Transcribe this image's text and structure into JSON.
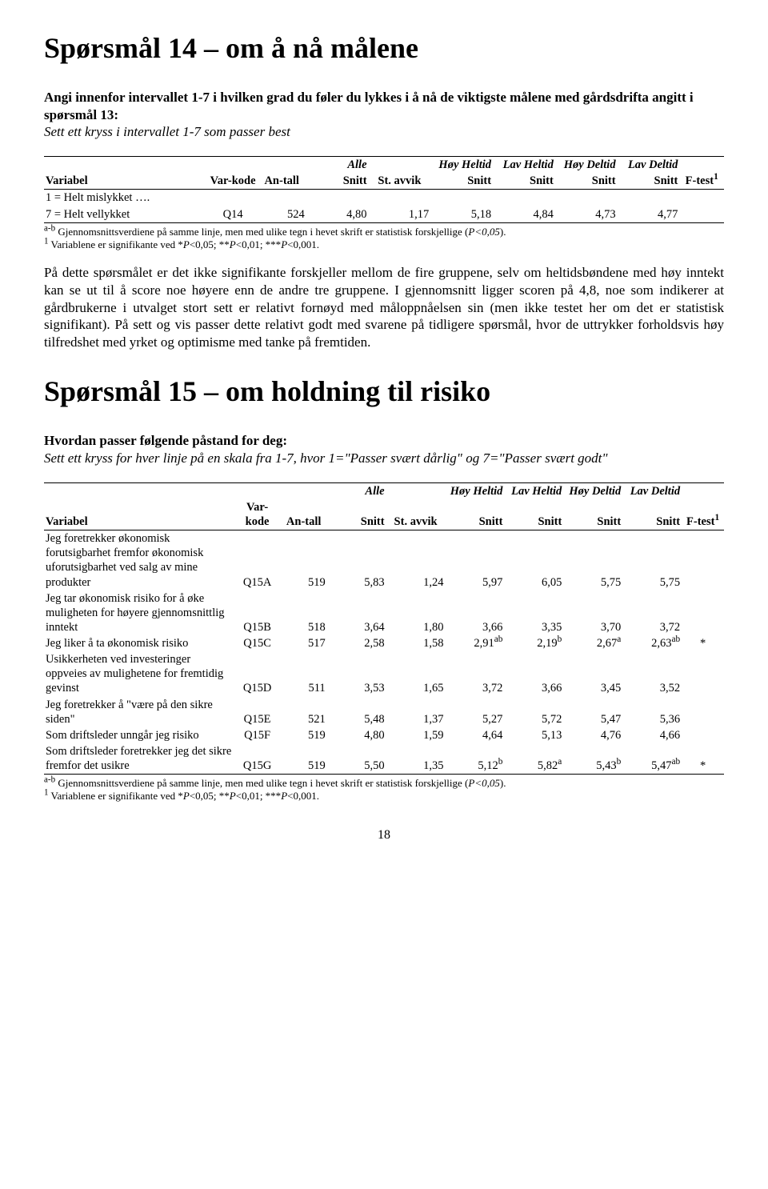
{
  "section14": {
    "title": "Spørsmål 14 – om å nå målene",
    "intro_bold": "Angi innenfor intervallet 1-7 i hvilken grad du føler du lykkes i å nå de viktigste målene med gårdsdrifta angitt i spørsmål 13:",
    "intro_italic": "Sett ett kryss i intervallet 1-7 som passer best",
    "row_stub1": "1 = Helt mislykket ….",
    "row_label": "7 = Helt vellykket",
    "row_code": "Q14",
    "row_n": "524",
    "row_snitt": "4,80",
    "row_sd": "1,17",
    "row_hh": "5,18",
    "row_lh": "4,84",
    "row_hd": "4,73",
    "row_ld": "4,77",
    "row_f": ""
  },
  "headers": {
    "alle": "Alle",
    "hoy_heltid": "Høy Heltid",
    "lav_heltid": "Lav Heltid",
    "hoy_deltid": "Høy Deltid",
    "lav_deltid": "Lav Deltid",
    "variabel": "Variabel",
    "varkode": "Var-kode",
    "antall": "An-tall",
    "snitt": "Snitt",
    "stavvik": "St. avvik",
    "ftest": "F-test",
    "ftest_sup": "1"
  },
  "footnotes": {
    "a": "a-b",
    "line1": " Gjennomsnittsverdiene på samme linje, men med ulike tegn i hevet skrift er statistisk forskjellige (",
    "pval": "P<0,05",
    "line1_end": ").",
    "sup2": "1",
    "line2": " Variablene er signifikante ved *",
    "p1": "P",
    "v1": "<0,05; **",
    "p2": "P",
    "v2": "<0,01; ***",
    "p3": "P",
    "v3": "<0,001."
  },
  "body14": "På dette spørsmålet er det ikke signifikante forskjeller mellom de fire gruppene, selv om heltidsbøndene med høy inntekt kan se ut til å score noe høyere enn de andre tre gruppene. I gjennomsnitt ligger scoren på 4,8, noe som indikerer at gårdbrukerne i utvalget stort sett er relativt fornøyd med måloppnåelsen sin (men ikke testet her om det er statistisk signifikant). På sett og vis passer dette relativt godt med svarene på tidligere spørsmål, hvor de uttrykker forholdsvis høy tilfredshet med yrket og optimisme med tanke på fremtiden.",
  "section15": {
    "title": "Spørsmål 15 – om holdning til risiko",
    "intro_bold": "Hvordan passer følgende påstand for deg:",
    "intro_italic": "Sett ett kryss for hver linje på en skala fra 1-7, hvor 1=\"Passer svært dårlig\" og 7=\"Passer svært godt\"",
    "rows": [
      {
        "label": "Jeg foretrekker økonomisk forutsigbarhet fremfor økonomisk uforutsigbarhet ved salg av mine produkter",
        "code": "Q15A",
        "n": "519",
        "snitt": "5,83",
        "sd": "1,24",
        "hh": "5,97",
        "hh_s": "",
        "lh": "6,05",
        "lh_s": "",
        "hd": "5,75",
        "hd_s": "",
        "ld": "5,75",
        "ld_s": "",
        "f": ""
      },
      {
        "label": "Jeg tar økonomisk risiko for å øke muligheten for høyere gjennomsnittlig inntekt",
        "code": "Q15B",
        "n": "518",
        "snitt": "3,64",
        "sd": "1,80",
        "hh": "3,66",
        "hh_s": "",
        "lh": "3,35",
        "lh_s": "",
        "hd": "3,70",
        "hd_s": "",
        "ld": "3,72",
        "ld_s": "",
        "f": ""
      },
      {
        "label": "Jeg liker å ta økonomisk risiko",
        "code": "Q15C",
        "n": "517",
        "snitt": "2,58",
        "sd": "1,58",
        "hh": "2,91",
        "hh_s": "ab",
        "lh": "2,19",
        "lh_s": "b",
        "hd": "2,67",
        "hd_s": "a",
        "ld": "2,63",
        "ld_s": "ab",
        "f": "*"
      },
      {
        "label": "Usikkerheten ved investeringer oppveies av mulighetene for fremtidig gevinst",
        "code": "Q15D",
        "n": "511",
        "snitt": "3,53",
        "sd": "1,65",
        "hh": "3,72",
        "hh_s": "",
        "lh": "3,66",
        "lh_s": "",
        "hd": "3,45",
        "hd_s": "",
        "ld": "3,52",
        "ld_s": "",
        "f": ""
      },
      {
        "label": "Jeg foretrekker å \"være på den sikre siden\"",
        "code": "Q15E",
        "n": "521",
        "snitt": "5,48",
        "sd": "1,37",
        "hh": "5,27",
        "hh_s": "",
        "lh": "5,72",
        "lh_s": "",
        "hd": "5,47",
        "hd_s": "",
        "ld": "5,36",
        "ld_s": "",
        "f": ""
      },
      {
        "label": "Som driftsleder unngår jeg risiko",
        "code": "Q15F",
        "n": "519",
        "snitt": "4,80",
        "sd": "1,59",
        "hh": "4,64",
        "hh_s": "",
        "lh": "5,13",
        "lh_s": "",
        "hd": "4,76",
        "hd_s": "",
        "ld": "4,66",
        "ld_s": "",
        "f": ""
      },
      {
        "label": "Som driftsleder foretrekker jeg det sikre fremfor det usikre",
        "code": "Q15G",
        "n": "519",
        "snitt": "5,50",
        "sd": "1,35",
        "hh": "5,12",
        "hh_s": "b",
        "lh": "5,82",
        "lh_s": "a",
        "hd": "5,43",
        "hd_s": "b",
        "ld": "5,47",
        "ld_s": "ab",
        "f": "*"
      }
    ]
  },
  "page_num": "18"
}
